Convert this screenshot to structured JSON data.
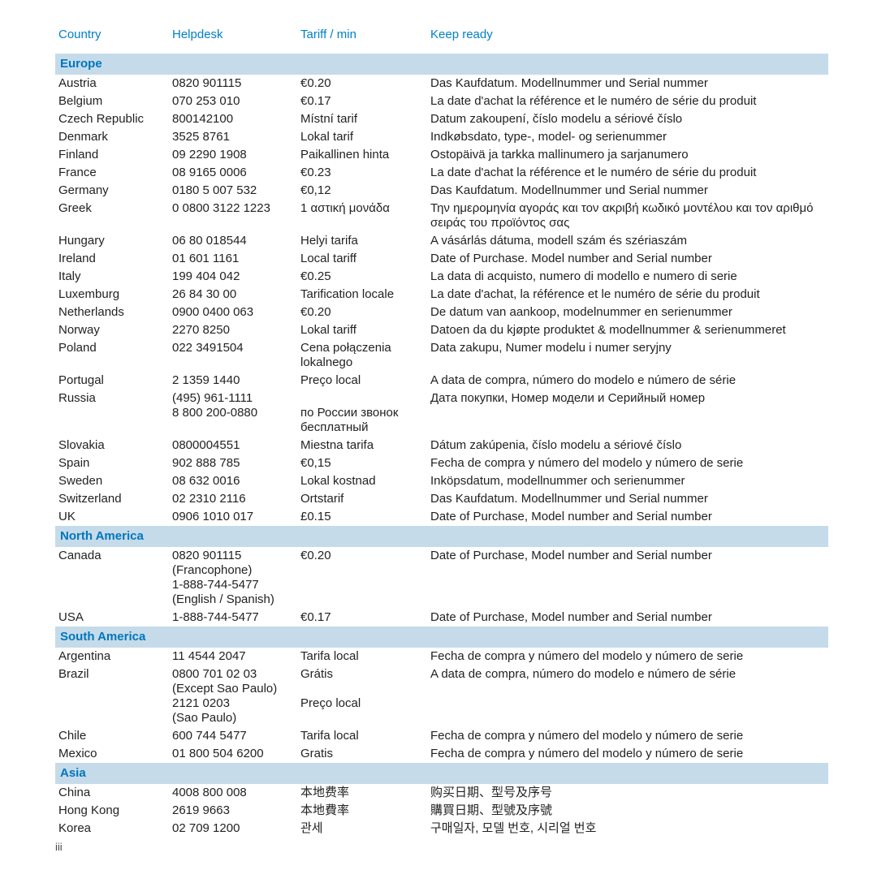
{
  "colors": {
    "header_text": "#0080c8",
    "region_bg": "#c5dbea",
    "region_text": "#0076bb",
    "body_text": "#222222",
    "background": "#ffffff"
  },
  "columns": {
    "country": "Country",
    "helpdesk": "Helpdesk",
    "tariff": "Tariff / min",
    "keep": "Keep ready"
  },
  "page_number": "iii",
  "regions": [
    {
      "name": "Europe",
      "rows": [
        {
          "country": "Austria",
          "helpdesk": "0820 901115",
          "tariff": "€0.20",
          "keep": "Das Kaufdatum. Modellnummer und Serial nummer"
        },
        {
          "country": "Belgium",
          "helpdesk": "070 253 010",
          "tariff": "€0.17",
          "keep": "La date d'achat la référence et le numéro de série du produit"
        },
        {
          "country": "Czech Republic",
          "helpdesk": "800142100",
          "tariff": "Místní tarif",
          "keep": "Datum zakoupení, číslo modelu a sériové číslo"
        },
        {
          "country": "Denmark",
          "helpdesk": "3525 8761",
          "tariff": "Lokal tarif",
          "keep": "Indkøbsdato, type-, model- og serienummer"
        },
        {
          "country": "Finland",
          "helpdesk": "09 2290 1908",
          "tariff": "Paikallinen hinta",
          "keep": "Ostopäivä ja tarkka mallinumero ja sarjanumero"
        },
        {
          "country": "France",
          "helpdesk": "08 9165 0006",
          "tariff": "€0.23",
          "keep": "La date d'achat la référence et le numéro de série du produit"
        },
        {
          "country": "Germany",
          "helpdesk": "0180 5 007 532",
          "tariff": "€0,12",
          "keep": "Das Kaufdatum. Modellnummer und Serial nummer"
        },
        {
          "country": "Greek",
          "helpdesk": "0 0800 3122 1223",
          "tariff": "1 αστική μονάδα",
          "keep": "Την ημερομηνία αγοράς και τον ακριβή κωδικό μοντέλου και τον αριθμό σειράς του προϊόντος σας"
        },
        {
          "country": "Hungary",
          "helpdesk": "06 80 018544",
          "tariff": "Helyi tarifa",
          "keep": "A vásárlás dátuma, modell szám és szériaszám"
        },
        {
          "country": "Ireland",
          "helpdesk": "01 601 1161",
          "tariff": "Local tariff",
          "keep": "Date of Purchase. Model number and Serial number"
        },
        {
          "country": "Italy",
          "helpdesk": "199 404 042",
          "tariff": "€0.25",
          "keep": "La data di acquisto, numero di modello e numero di serie"
        },
        {
          "country": "Luxemburg",
          "helpdesk": "26 84 30 00",
          "tariff": "Tarification locale",
          "keep": "La date d'achat, la référence et le numéro de série du produit"
        },
        {
          "country": "Netherlands",
          "helpdesk": "0900 0400 063",
          "tariff": "€0.20",
          "keep": "De datum van aankoop, modelnummer en serienummer"
        },
        {
          "country": "Norway",
          "helpdesk": "2270 8250",
          "tariff": "Lokal tariff",
          "keep": "Datoen da du kjøpte produktet & modellnummer & serienummeret"
        },
        {
          "country": "Poland",
          "helpdesk": "022 3491504",
          "tariff": "Cena połączenia lokalnego",
          "keep": "Data zakupu, Numer modelu i numer seryjny"
        },
        {
          "country": "Portugal",
          "helpdesk": "2 1359 1440",
          "tariff": "Preço local",
          "keep": "A data de compra, número do modelo e número de série"
        },
        {
          "country": "Russia",
          "helpdesk": "(495) 961-1111\n8 800 200-0880",
          "tariff": "\nпо России звонок бесплатный",
          "keep": "Дата покупки, Номер модели и Серийный номер"
        },
        {
          "country": "Slovakia",
          "helpdesk": "0800004551",
          "tariff": "Miestna tarifa",
          "keep": "Dátum zakúpenia, číslo modelu a sériové číslo"
        },
        {
          "country": "Spain",
          "helpdesk": "902 888 785",
          "tariff": "€0,15",
          "keep": "Fecha de compra y número del modelo y número de serie"
        },
        {
          "country": "Sweden",
          "helpdesk": "08 632 0016",
          "tariff": "Lokal kostnad",
          "keep": "Inköpsdatum, modellnummer och serienummer"
        },
        {
          "country": "Switzerland",
          "helpdesk": "02 2310 2116",
          "tariff": "Ortstarif",
          "keep": "Das Kaufdatum. Modellnummer und Serial nummer"
        },
        {
          "country": "UK",
          "helpdesk": "0906 1010 017",
          "tariff": "£0.15",
          "keep": "Date of Purchase, Model number and Serial number"
        }
      ]
    },
    {
      "name": "North America",
      "rows": [
        {
          "country": "Canada",
          "helpdesk": "0820 901115\n(Francophone)\n1-888-744-5477\n(English / Spanish)",
          "tariff": "€0.20",
          "keep": "Date of Purchase, Model number and Serial number"
        },
        {
          "country": "USA",
          "helpdesk": "1-888-744-5477",
          "tariff": "€0.17",
          "keep": "Date of Purchase, Model number and Serial number"
        }
      ]
    },
    {
      "name": "South America",
      "rows": [
        {
          "country": "Argentina",
          "helpdesk": "11 4544 2047",
          "tariff": "Tarifa local",
          "keep": "Fecha de compra y número del modelo y número de serie"
        },
        {
          "country": "Brazil",
          "helpdesk": "0800 701 02 03\n(Except Sao Paulo)\n2121 0203\n(Sao Paulo)",
          "tariff": "Grátis\n\nPreço local",
          "keep": "A data de compra, número do modelo e número de série"
        },
        {
          "country": "Chile",
          "helpdesk": "600 744 5477",
          "tariff": "Tarifa local",
          "keep": "Fecha de compra y número del modelo y número de serie"
        },
        {
          "country": "Mexico",
          "helpdesk": "01 800 504 6200",
          "tariff": "Gratis",
          "keep": "Fecha de compra y número del modelo y número de serie"
        }
      ]
    },
    {
      "name": "Asia",
      "rows": [
        {
          "country": "China",
          "helpdesk": "4008 800 008",
          "tariff": "本地费率",
          "keep": "购买日期、型号及序号"
        },
        {
          "country": "Hong Kong",
          "helpdesk": "2619 9663",
          "tariff": "本地費率",
          "keep": "購買日期、型號及序號"
        },
        {
          "country": "Korea",
          "helpdesk": "02 709 1200",
          "tariff": "관세",
          "keep": "구매일자, 모델 번호, 시리얼 번호"
        }
      ]
    }
  ]
}
